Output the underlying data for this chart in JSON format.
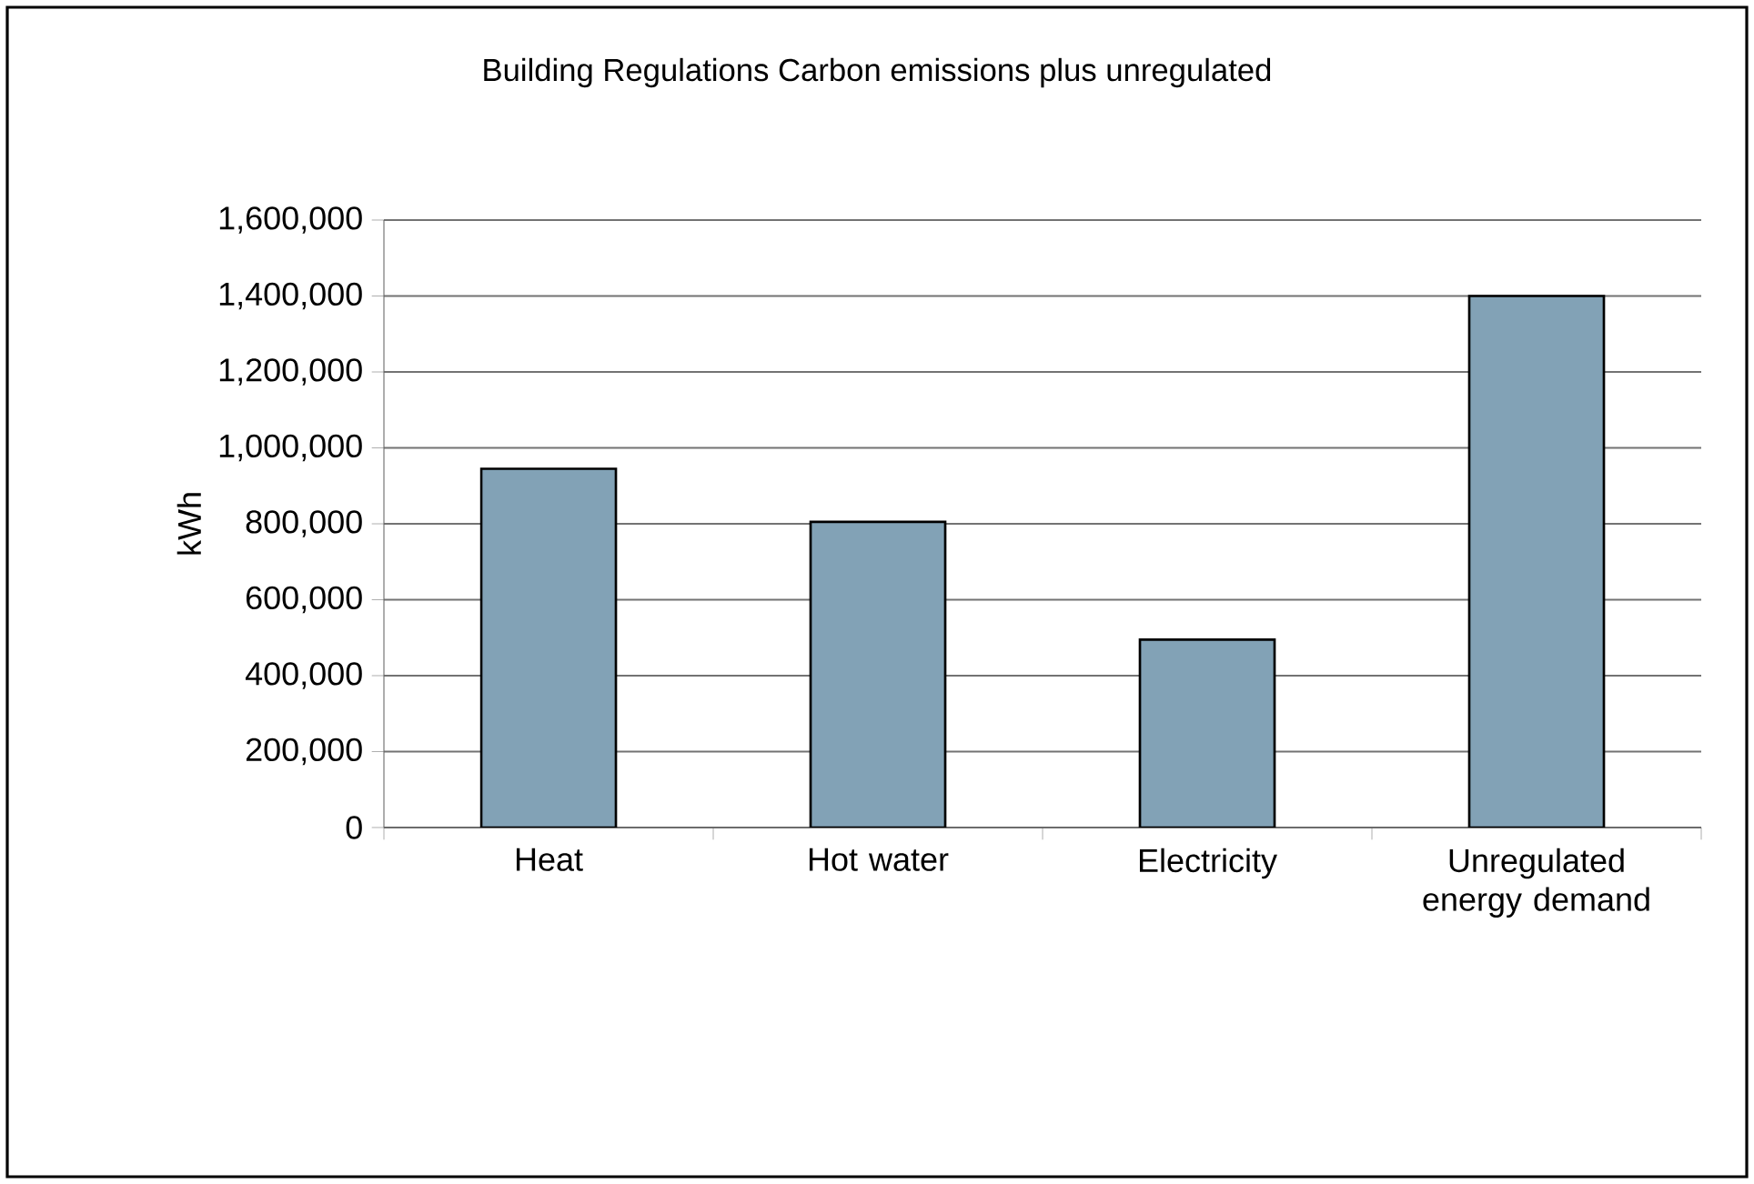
{
  "chart_data": {
    "type": "bar",
    "title": "Building Regulations Carbon emissions plus unregulated",
    "ylabel": "kWh",
    "categories": [
      "Heat",
      "Hot water",
      "Electricity",
      "Unregulated energy demand"
    ],
    "values": [
      945000,
      805000,
      495000,
      1400000
    ],
    "color": "#82a2b6",
    "ylim": [
      0,
      1600000
    ],
    "yticks": [
      {
        "value": 0,
        "label": "0"
      },
      {
        "value": 200000,
        "label": "200,000"
      },
      {
        "value": 400000,
        "label": "400,000"
      },
      {
        "value": 600000,
        "label": "600,000"
      },
      {
        "value": 800000,
        "label": "800,000"
      },
      {
        "value": 1000000,
        "label": "1,000,000"
      },
      {
        "value": 1200000,
        "label": "1,200,000"
      },
      {
        "value": 1400000,
        "label": "1,400,000"
      },
      {
        "value": 1600000,
        "label": "1,600,000"
      }
    ],
    "grid": "y"
  }
}
